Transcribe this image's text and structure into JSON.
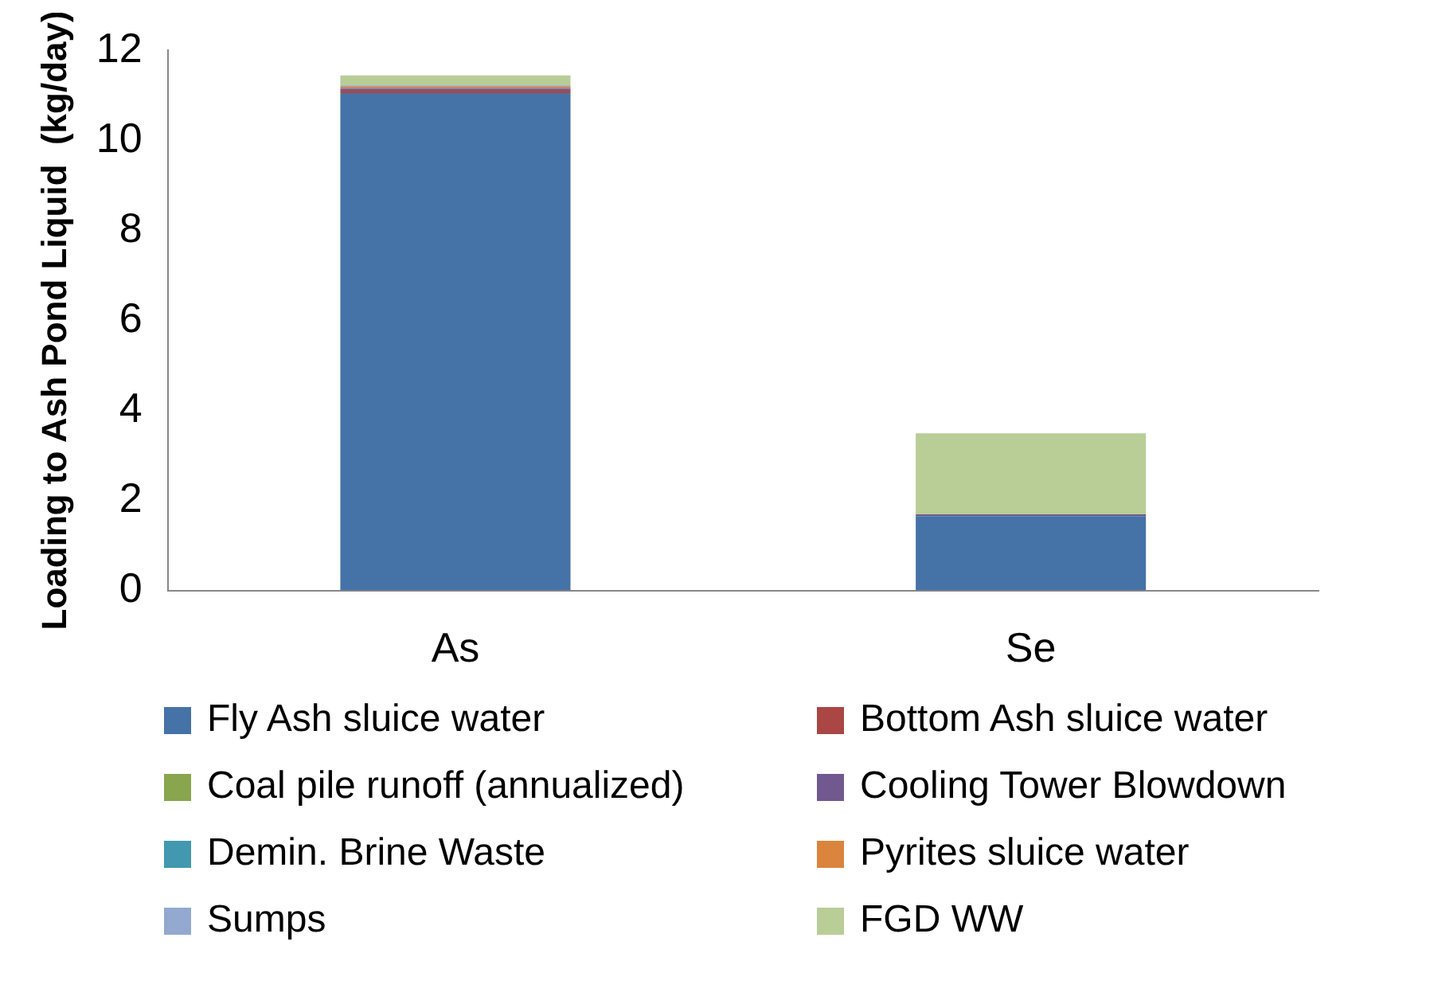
{
  "chart_data": {
    "type": "bar",
    "stacked": true,
    "ylabel": "Loading to Ash Pond Liquid  (kg/day)",
    "categories": [
      "As",
      "Se"
    ],
    "series": [
      {
        "name": "Fly Ash sluice water",
        "color": "#4572a7",
        "values": [
          11.05,
          1.65
        ]
      },
      {
        "name": "Bottom Ash sluice water",
        "color": "#aa4643",
        "values": [
          0.05,
          null
        ]
      },
      {
        "name": "Coal pile runoff (annualized)",
        "color": "#89a54e",
        "values": [
          0,
          0
        ]
      },
      {
        "name": "Cooling Tower Blowdown",
        "color": "#71588f",
        "values": [
          0.05,
          0.04
        ]
      },
      {
        "name": "Demin. Brine Waste",
        "color": "#4198af",
        "values": [
          0,
          0
        ]
      },
      {
        "name": "Pyrites sluice water",
        "color": "#db843d",
        "values": [
          0.04,
          0
        ]
      },
      {
        "name": "Sumps",
        "color": "#93a9cf",
        "values": [
          0.03,
          0
        ]
      },
      {
        "name": "FGD WW",
        "color": "#b9cd96",
        "values": [
          0.22,
          1.8
        ]
      }
    ],
    "ylim": [
      0,
      12
    ],
    "yticks": [
      0,
      2,
      4,
      6,
      8,
      10,
      12
    ],
    "grid": false,
    "legend": "bottom"
  }
}
